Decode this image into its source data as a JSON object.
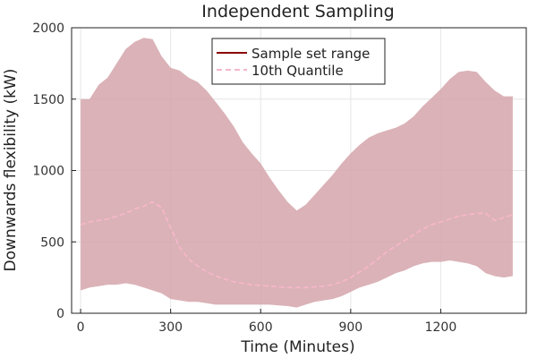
{
  "chart_data": {
    "type": "area",
    "title": "Independent Sampling",
    "xlabel": "Time (Minutes)",
    "ylabel": "Downwards flexibility (kW)",
    "xlim": [
      -30,
      1485
    ],
    "ylim": [
      0,
      2000
    ],
    "xticks": [
      0,
      300,
      600,
      900,
      1200
    ],
    "yticks": [
      0,
      500,
      1000,
      1500,
      2000
    ],
    "grid": true,
    "legend_position": "top-right",
    "series": [
      {
        "name": "Sample set range",
        "kind": "band",
        "line_color": "#8b0000",
        "fill_color": "#d4a4aa",
        "x": [
          0,
          30,
          60,
          90,
          120,
          150,
          180,
          210,
          240,
          270,
          300,
          330,
          360,
          390,
          420,
          450,
          480,
          510,
          540,
          570,
          600,
          630,
          660,
          690,
          720,
          750,
          780,
          810,
          840,
          870,
          900,
          930,
          960,
          990,
          1020,
          1050,
          1080,
          1110,
          1140,
          1170,
          1200,
          1230,
          1260,
          1290,
          1320,
          1350,
          1380,
          1410,
          1440
        ],
        "upper": [
          1500,
          1500,
          1600,
          1650,
          1750,
          1850,
          1900,
          1930,
          1920,
          1800,
          1720,
          1700,
          1650,
          1620,
          1560,
          1480,
          1400,
          1310,
          1200,
          1120,
          1050,
          950,
          860,
          780,
          720,
          760,
          830,
          900,
          970,
          1050,
          1120,
          1180,
          1230,
          1260,
          1280,
          1300,
          1330,
          1380,
          1450,
          1510,
          1570,
          1640,
          1690,
          1700,
          1690,
          1620,
          1560,
          1520,
          1520
        ],
        "lower": [
          160,
          180,
          190,
          200,
          200,
          210,
          200,
          180,
          160,
          140,
          100,
          90,
          80,
          80,
          70,
          60,
          60,
          60,
          60,
          60,
          60,
          60,
          55,
          50,
          40,
          60,
          80,
          90,
          100,
          120,
          150,
          180,
          200,
          220,
          250,
          280,
          300,
          330,
          350,
          360,
          360,
          370,
          360,
          350,
          330,
          280,
          260,
          250,
          260
        ]
      },
      {
        "name": "10th Quantile",
        "kind": "line",
        "dashed": true,
        "color": "#f4b6c8",
        "x": [
          0,
          30,
          60,
          90,
          120,
          150,
          180,
          210,
          240,
          270,
          300,
          330,
          360,
          390,
          420,
          450,
          480,
          510,
          540,
          570,
          600,
          630,
          660,
          690,
          720,
          750,
          780,
          810,
          840,
          870,
          900,
          930,
          960,
          990,
          1020,
          1050,
          1080,
          1110,
          1140,
          1170,
          1200,
          1230,
          1260,
          1290,
          1320,
          1350,
          1380,
          1410,
          1440
        ],
        "values": [
          620,
          640,
          650,
          660,
          680,
          700,
          730,
          750,
          780,
          740,
          600,
          460,
          380,
          330,
          290,
          260,
          240,
          220,
          210,
          200,
          195,
          190,
          185,
          180,
          180,
          180,
          185,
          190,
          200,
          220,
          250,
          290,
          330,
          380,
          430,
          470,
          510,
          550,
          590,
          620,
          640,
          660,
          680,
          690,
          700,
          700,
          650,
          670,
          690
        ]
      }
    ]
  }
}
